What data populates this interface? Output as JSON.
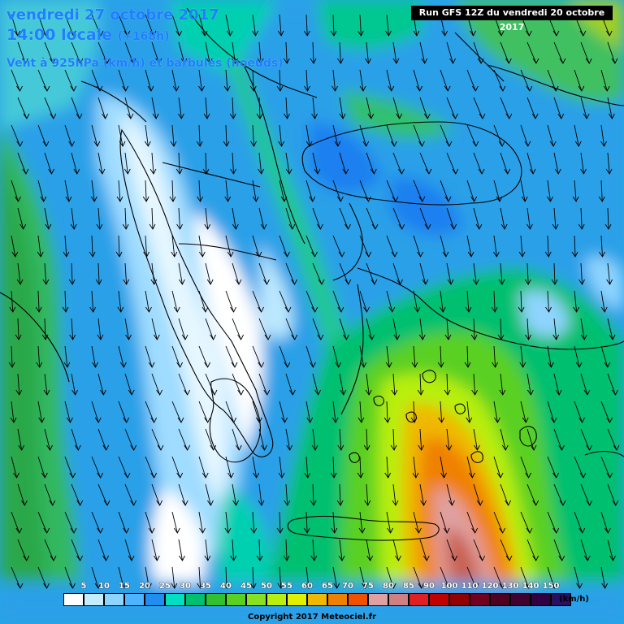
{
  "map": {
    "title_line1": "vendredi 27 octobre 2017",
    "title_line2": "14:00 locale",
    "title_line2_suffix": "(+168h)",
    "title_line3": "Vent à 925hPa (km/h) et barbules (noeuds)",
    "run_info": "Run GFS 12Z du vendredi 20 octobre 2017",
    "copyright": "Copyright 2017 Meteociel.fr",
    "accent_color": "#1e7fff"
  },
  "legend": {
    "unit": "(km/h)",
    "ticks": [
      "5",
      "10",
      "15",
      "20",
      "25",
      "30",
      "35",
      "40",
      "45",
      "50",
      "55",
      "60",
      "65",
      "70",
      "75",
      "80",
      "85",
      "90",
      "100",
      "110",
      "120",
      "130",
      "140",
      "150"
    ],
    "colors": [
      "#ffffff",
      "#c6ecff",
      "#8fd4ff",
      "#4fb4ff",
      "#1f8ef0",
      "#00e0c0",
      "#00c070",
      "#30c030",
      "#5ad020",
      "#88e020",
      "#b8ef10",
      "#e0f000",
      "#f0b800",
      "#f08000",
      "#f05000",
      "#e0a0a0",
      "#d08080",
      "#e02020",
      "#c00000",
      "#900000",
      "#700020",
      "#500020",
      "#400030",
      "#300040",
      "#2a1060"
    ]
  }
}
